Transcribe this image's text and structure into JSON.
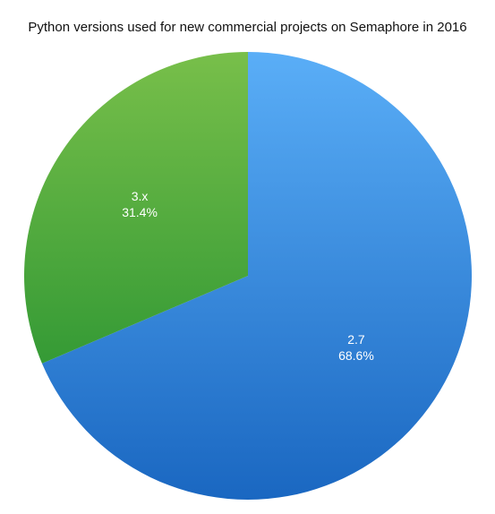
{
  "chart_data": {
    "type": "pie",
    "title": "Python versions used for new commercial projects on Semaphore in 2016",
    "slices": [
      {
        "label": "2.7",
        "value": 68.6,
        "value_label": "68.6%",
        "color_light": "#5AAEF7",
        "color_dark": "#1A67C1"
      },
      {
        "label": "3.x",
        "value": 31.4,
        "value_label": "31.4%",
        "color_light": "#78BF4A",
        "color_dark": "#178A2C"
      }
    ],
    "start": "12 o'clock",
    "direction": "clockwise",
    "legend": "none"
  }
}
